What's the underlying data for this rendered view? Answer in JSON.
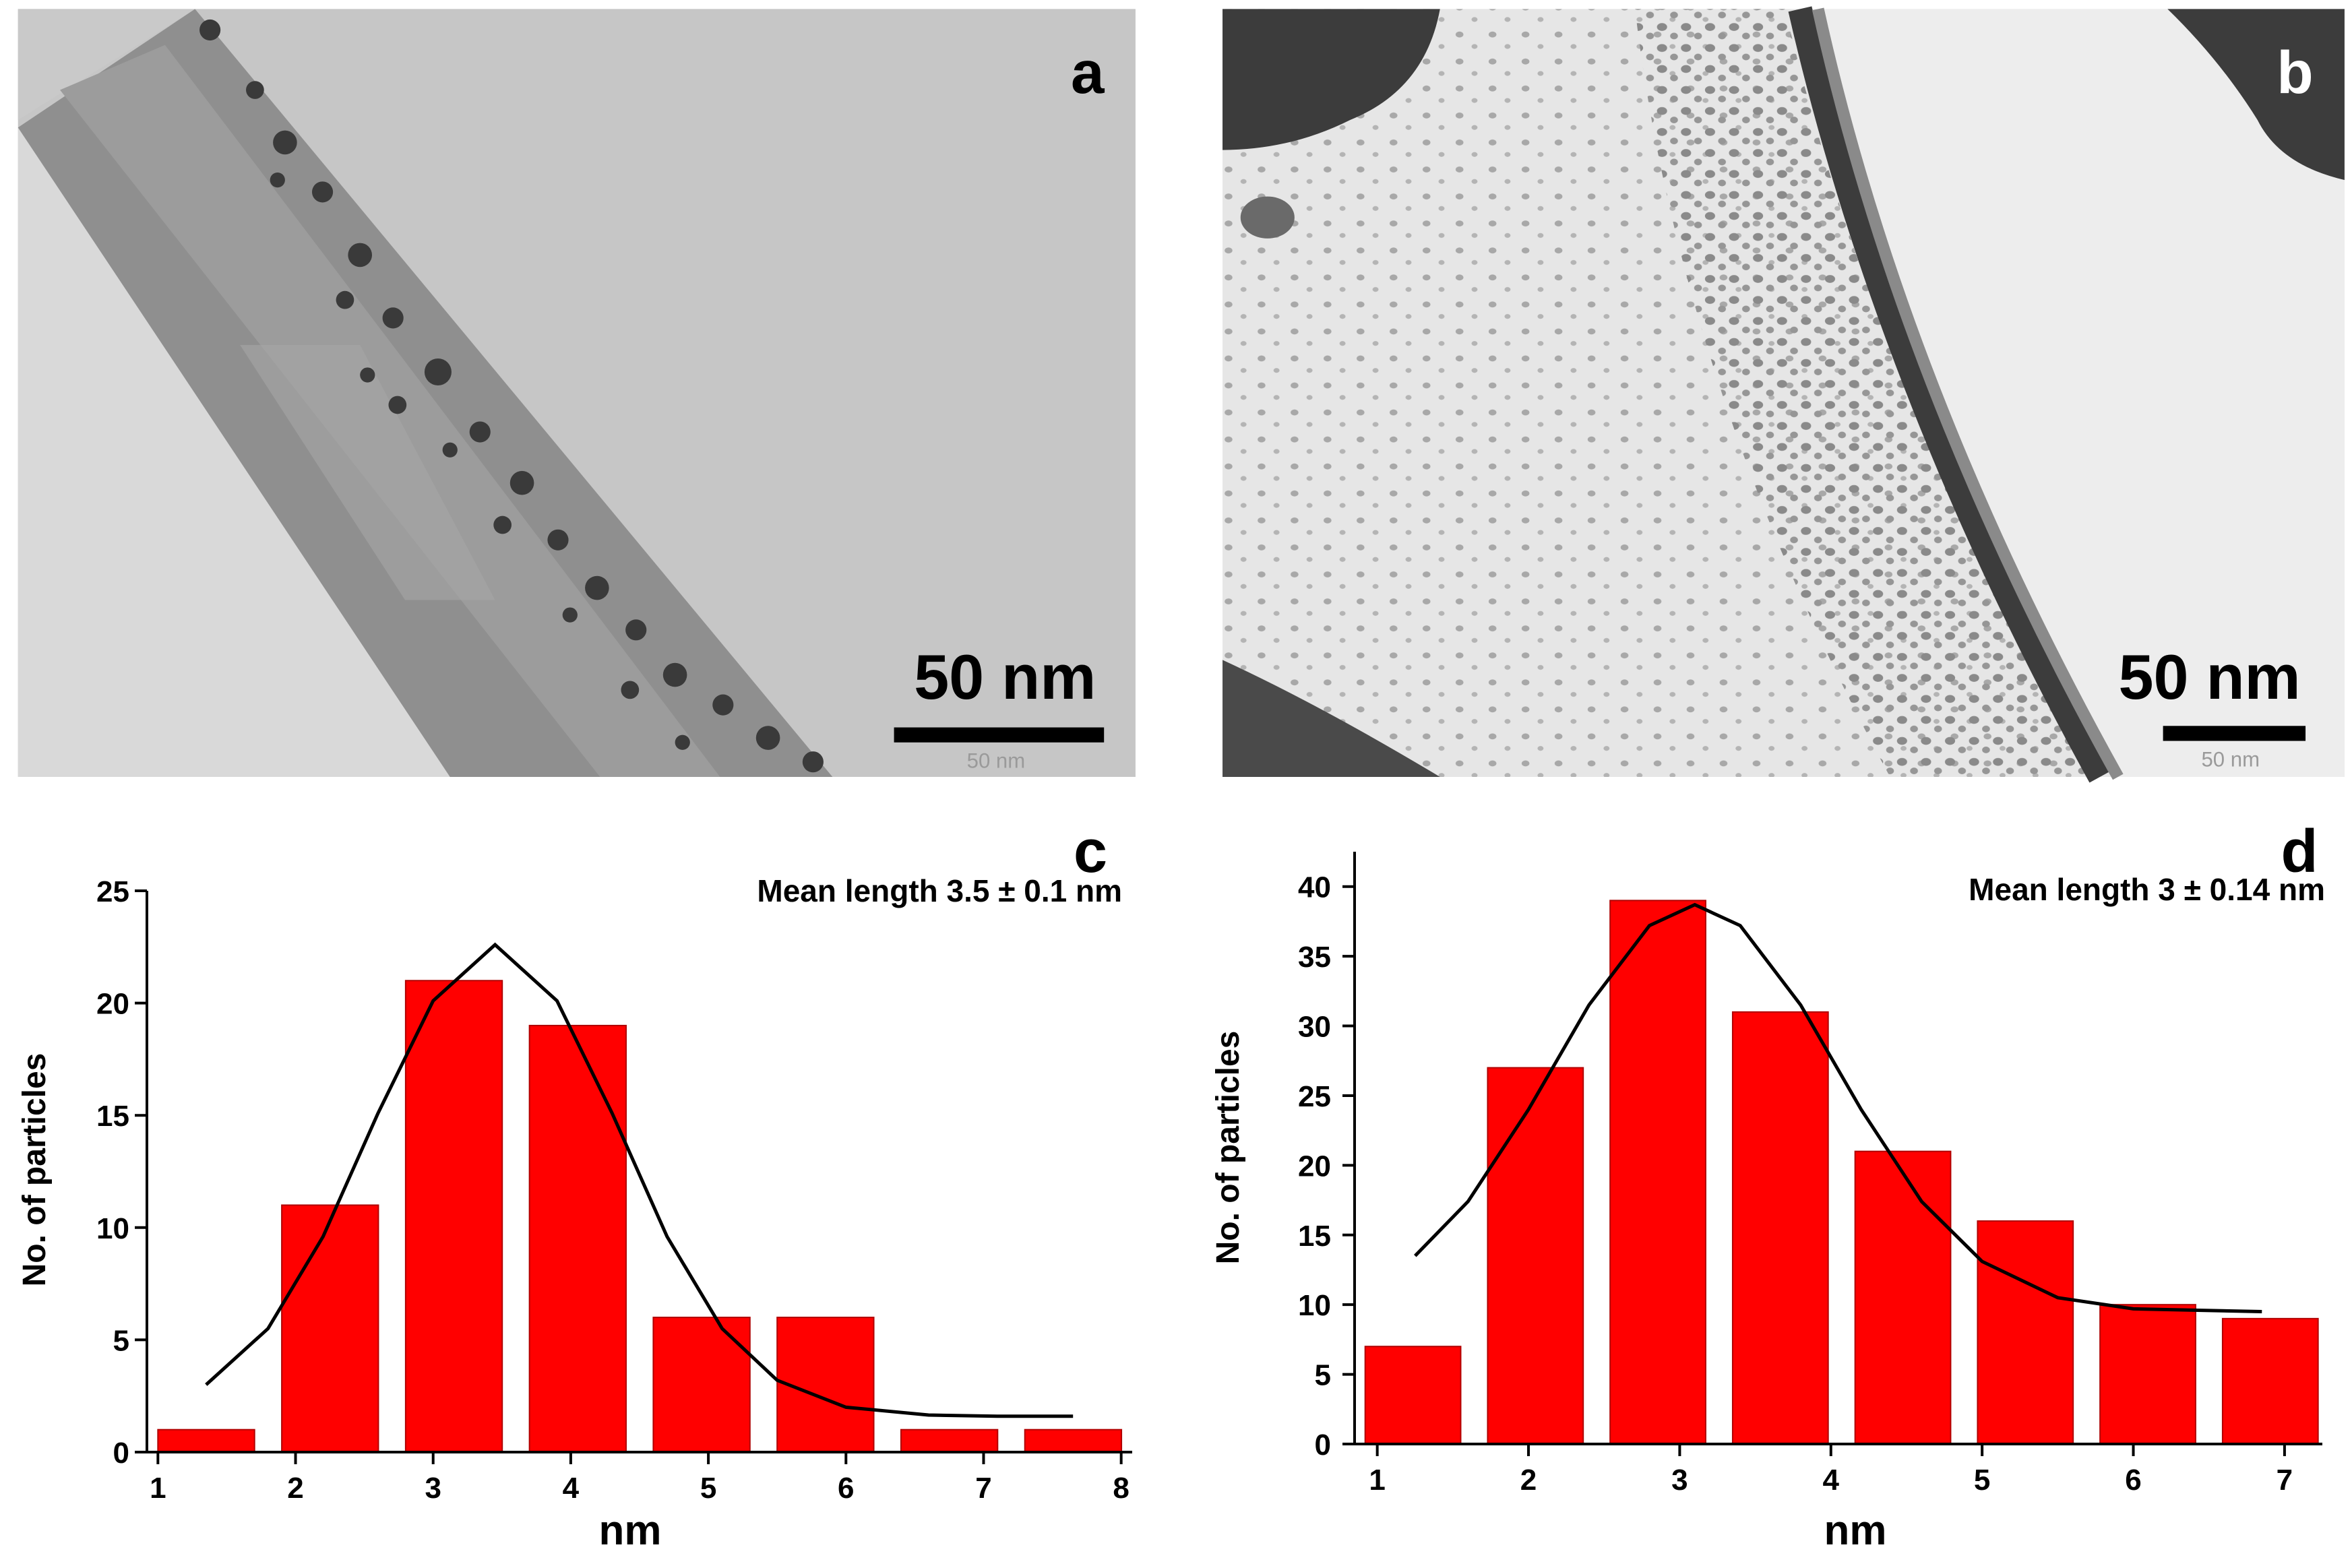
{
  "images": [
    {
      "label": "a",
      "scale_bar": "50 nm",
      "scale_bar_caption": "50 nm"
    },
    {
      "label": "b",
      "scale_bar": "50 nm",
      "scale_bar_caption": "50 nm"
    }
  ],
  "chart_data": [
    {
      "type": "histogram",
      "label": "c",
      "annotation": "Mean length 3.5 ± 0.1 nm",
      "x_label": "nm",
      "y_label": "No. of particles",
      "bins": [
        1,
        1.9,
        2.8,
        3.7,
        4.6,
        5.5,
        6.4,
        7.3,
        8.2
      ],
      "counts": [
        1,
        11,
        21,
        19,
        6,
        6,
        1,
        1
      ],
      "color": "#ff0000",
      "fit": {
        "color": "#000000",
        "x": [
          1.35,
          1.8,
          2.2,
          2.6,
          3.0,
          3.45,
          3.9,
          4.3,
          4.7,
          5.1,
          5.5,
          6.0,
          6.6,
          7.1,
          7.65
        ],
        "values": [
          3.0,
          5.5,
          9.6,
          15.1,
          20.1,
          22.6,
          20.1,
          15.1,
          9.6,
          5.5,
          3.2,
          2.0,
          1.65,
          1.6,
          1.6
        ]
      },
      "xlim": [
        0.92,
        8.08
      ],
      "xticks": [
        1,
        2,
        3,
        4,
        5,
        6,
        7,
        8
      ],
      "ylim": [
        0,
        25
      ],
      "yticks": [
        0,
        5,
        10,
        15,
        20,
        25
      ]
    },
    {
      "type": "histogram",
      "label": "d",
      "annotation": "Mean length 3 ± 0.14 nm",
      "x_label": "nm",
      "y_label": "No. of particles",
      "bins": [
        0.92,
        1.73,
        2.54,
        3.35,
        4.16,
        4.97,
        5.78,
        6.59,
        7.4
      ],
      "counts": [
        7,
        27,
        39,
        31,
        21,
        16,
        10,
        9
      ],
      "color": "#ff0000",
      "fit": {
        "color": "#000000",
        "x": [
          1.25,
          1.6,
          2.0,
          2.4,
          2.8,
          3.1,
          3.4,
          3.8,
          4.2,
          4.6,
          5.0,
          5.5,
          6.0,
          6.4,
          6.85
        ],
        "values": [
          13.5,
          17.4,
          24.0,
          31.5,
          37.2,
          38.7,
          37.2,
          31.5,
          24.0,
          17.4,
          13.1,
          10.5,
          9.7,
          9.6,
          9.5
        ]
      },
      "xlim": [
        0.85,
        7.25
      ],
      "xticks": [
        1,
        2,
        3,
        4,
        5,
        6,
        7
      ],
      "ylim": [
        0,
        42.5
      ],
      "yticks": [
        0,
        5,
        10,
        15,
        20,
        25,
        30,
        35,
        40
      ]
    }
  ]
}
